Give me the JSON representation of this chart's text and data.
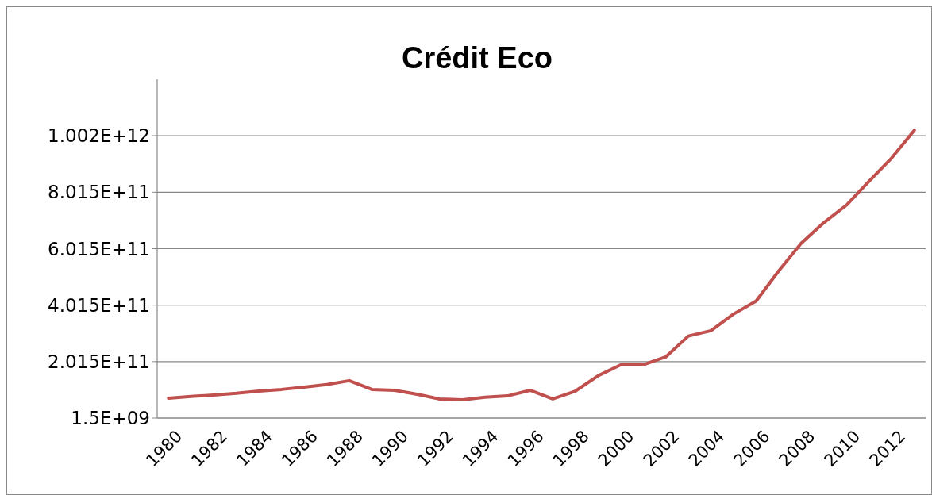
{
  "chart_data": {
    "type": "line",
    "title": "Crédit Eco",
    "categories": [
      "1980",
      null,
      "1982",
      null,
      "1984",
      null,
      "1986",
      null,
      "1988",
      null,
      "1990",
      null,
      "1992",
      null,
      "1994",
      null,
      "1996",
      null,
      "1998",
      null,
      "2000",
      null,
      "2002",
      null,
      "2004",
      null,
      "2006",
      null,
      "2008",
      null,
      "2010",
      null,
      "2012",
      null
    ],
    "series": [
      {
        "color": "#c0504d",
        "values": [
          72000000000.0,
          78000000000.0,
          83000000000.0,
          89000000000.0,
          97000000000.0,
          103000000000.0,
          111000000000.0,
          120000000000.0,
          134000000000.0,
          103000000000.0,
          100000000000.0,
          86000000000.0,
          69000000000.0,
          66000000000.0,
          75000000000.0,
          80000000000.0,
          100000000000.0,
          69000000000.0,
          97000000000.0,
          151000000000.0,
          190000000000.0,
          190000000000.0,
          218000000000.0,
          292000000000.0,
          311000000000.0,
          370000000000.0,
          416000000000.0,
          523000000000.0,
          621000000000.0,
          694000000000.0,
          756000000000.0,
          841000000000.0,
          923000000000.0,
          1021000000000.0
        ]
      }
    ],
    "ylim": [
      1500000000.0,
      1201500000000.0
    ],
    "yticks": [
      {
        "value": 1500000000.0,
        "label": "1.5E+09"
      },
      {
        "value": 201500000000.0,
        "label": "2.015E+11"
      },
      {
        "value": 401500000000.0,
        "label": "4.015E+11"
      },
      {
        "value": 601500000000.0,
        "label": "6.015E+11"
      },
      {
        "value": 801500000000.0,
        "label": "8.015E+11"
      },
      {
        "value": 1002000000000.0,
        "label": "1.002E+12"
      }
    ],
    "grid": "y",
    "marker": "none",
    "line_style": "solid"
  }
}
